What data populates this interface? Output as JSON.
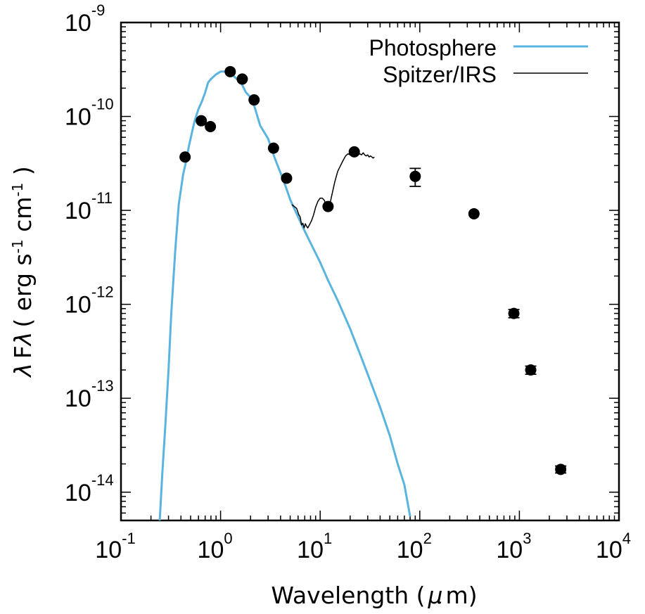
{
  "chart_data": {
    "type": "scatter",
    "title": "",
    "xlabel": "Wavelength ( μ m)",
    "ylabel": "λ Fλ ( erg s-1 cm-1 )",
    "ylabel_parts": {
      "lambda": "λ",
      "F": "F",
      "lambda_sub": "λ",
      "paren_open": "( erg s",
      "exp1": "-1",
      "cm": " cm",
      "exp2": "-1",
      "paren_close": " )"
    },
    "xlabel_parts": {
      "word": "Wavelength (",
      "mu": "μ",
      "unit": "m)"
    },
    "xscale": "log",
    "yscale": "log",
    "xlim": [
      0.1,
      10000
    ],
    "ylim": [
      5e-15,
      1e-09
    ],
    "x_ticks": [
      {
        "base": "10",
        "exp": "-1"
      },
      {
        "base": "10",
        "exp": "0"
      },
      {
        "base": "10",
        "exp": "1"
      },
      {
        "base": "10",
        "exp": "2"
      },
      {
        "base": "10",
        "exp": "3"
      },
      {
        "base": "10",
        "exp": "4"
      }
    ],
    "y_ticks": [
      {
        "base": "10",
        "exp": "-9"
      },
      {
        "base": "10",
        "exp": "-10"
      },
      {
        "base": "10",
        "exp": "-11"
      },
      {
        "base": "10",
        "exp": "-12"
      },
      {
        "base": "10",
        "exp": "-13"
      },
      {
        "base": "10",
        "exp": "-14"
      }
    ],
    "grid": false,
    "legend_position": "top-right",
    "colors": {
      "photosphere": "#5ab4e0",
      "irs": "#000000",
      "points": "#000000"
    },
    "series": [
      {
        "name": "Photosphere",
        "kind": "line",
        "x": [
          0.245,
          0.26,
          0.28,
          0.3,
          0.32,
          0.35,
          0.38,
          0.42,
          0.45,
          0.48,
          0.52,
          0.55,
          0.6,
          0.65,
          0.7,
          0.75,
          0.8,
          0.9,
          1.0,
          1.1,
          1.2,
          1.3,
          1.4,
          1.6,
          1.8,
          2.0,
          2.2,
          2.5,
          3.0,
          3.5,
          4.0,
          4.5,
          5.0,
          6.0,
          7.0,
          8.0,
          10.0,
          12.0,
          15.0,
          20.0,
          25.0,
          30.0,
          40.0,
          50.0,
          60.0,
          70.0,
          80.0
        ],
        "y": [
          5e-15,
          1.6e-14,
          5.5e-14,
          2e-13,
          8e-13,
          3.6e-12,
          1.15e-11,
          2.4e-11,
          3.3e-11,
          4.8e-11,
          7e-11,
          9e-11,
          1.2e-10,
          1.45e-10,
          1.8e-10,
          2.3e-10,
          2.5e-10,
          2.8e-10,
          3e-10,
          3e-10,
          3.05e-10,
          2.8e-10,
          2.6e-10,
          2.3e-10,
          1.8e-10,
          1.6e-10,
          1.25e-10,
          8e-11,
          5.8e-11,
          3.6e-11,
          2.5e-11,
          1.8e-11,
          1.3e-11,
          8.5e-12,
          6e-12,
          4.5e-12,
          2.8e-12,
          1.8e-12,
          1.1e-12,
          5.5e-13,
          3e-13,
          1.8e-13,
          8e-14,
          4e-14,
          2e-14,
          1.2e-14,
          5.5e-15
        ]
      },
      {
        "name": "Spitzer/IRS",
        "kind": "line",
        "x": [
          5.2,
          5.5,
          5.8,
          6.1,
          6.3,
          6.5,
          6.7,
          6.9,
          7.1,
          7.3,
          7.5,
          7.8,
          8.2,
          8.6,
          9.0,
          9.5,
          10.0,
          10.5,
          11.0,
          11.5,
          12.0,
          12.5,
          13.0,
          14.0,
          15.0,
          16.0,
          17.0,
          18.0,
          19.0,
          20.0,
          21.0,
          22.0,
          23.0,
          24.0,
          25.0,
          26.0,
          27.0,
          28.0,
          29.0,
          30.0,
          31.0,
          32.0,
          33.0,
          34.0,
          35.0
        ],
        "y": [
          1.15e-11,
          1.1e-11,
          1.05e-11,
          9e-12,
          8.5e-12,
          7e-12,
          7.3e-12,
          6.5e-12,
          7.2e-12,
          6.8e-12,
          6.5e-12,
          7e-12,
          7.8e-12,
          9e-12,
          1.08e-11,
          1.25e-11,
          1.35e-11,
          1.35e-11,
          1.28e-11,
          1.12e-11,
          1.05e-11,
          1.15e-11,
          1.4e-11,
          2e-11,
          2.6e-11,
          3e-11,
          3.4e-11,
          3.8e-11,
          4e-11,
          3.9e-11,
          4.1e-11,
          4.1e-11,
          3.85e-11,
          3.9e-11,
          4e-11,
          3.9e-11,
          4.1e-11,
          3.9e-11,
          3.8e-11,
          3.9e-11,
          3.7e-11,
          3.8e-11,
          3.7e-11,
          3.6e-11,
          3.7e-11
        ]
      },
      {
        "name": "",
        "kind": "points",
        "x": [
          0.44,
          0.64,
          0.79,
          1.25,
          1.65,
          2.17,
          3.4,
          4.6,
          12.0,
          22.0,
          90.0,
          350.0,
          880.0,
          1300.0,
          2600.0
        ],
        "y": [
          3.7e-11,
          9e-11,
          7.8e-11,
          3e-10,
          2.5e-10,
          1.5e-10,
          4.6e-11,
          2.2e-11,
          1.1e-11,
          4.2e-11,
          2.3e-11,
          9.2e-12,
          8e-13,
          2e-13,
          1.75e-14
        ],
        "yerr_low": [
          0,
          0,
          0,
          0,
          0,
          0,
          0,
          0,
          0,
          0,
          5e-12,
          0,
          8e-14,
          2e-14,
          1.5e-15
        ],
        "yerr_high": [
          0,
          0,
          0,
          0,
          0,
          0,
          0,
          0,
          0,
          0,
          5e-12,
          0,
          8e-14,
          2e-14,
          1.5e-15
        ]
      }
    ],
    "legend": [
      {
        "label": "Photosphere",
        "series": "Photosphere"
      },
      {
        "label": "Spitzer/IRS",
        "series": "Spitzer/IRS"
      }
    ]
  }
}
